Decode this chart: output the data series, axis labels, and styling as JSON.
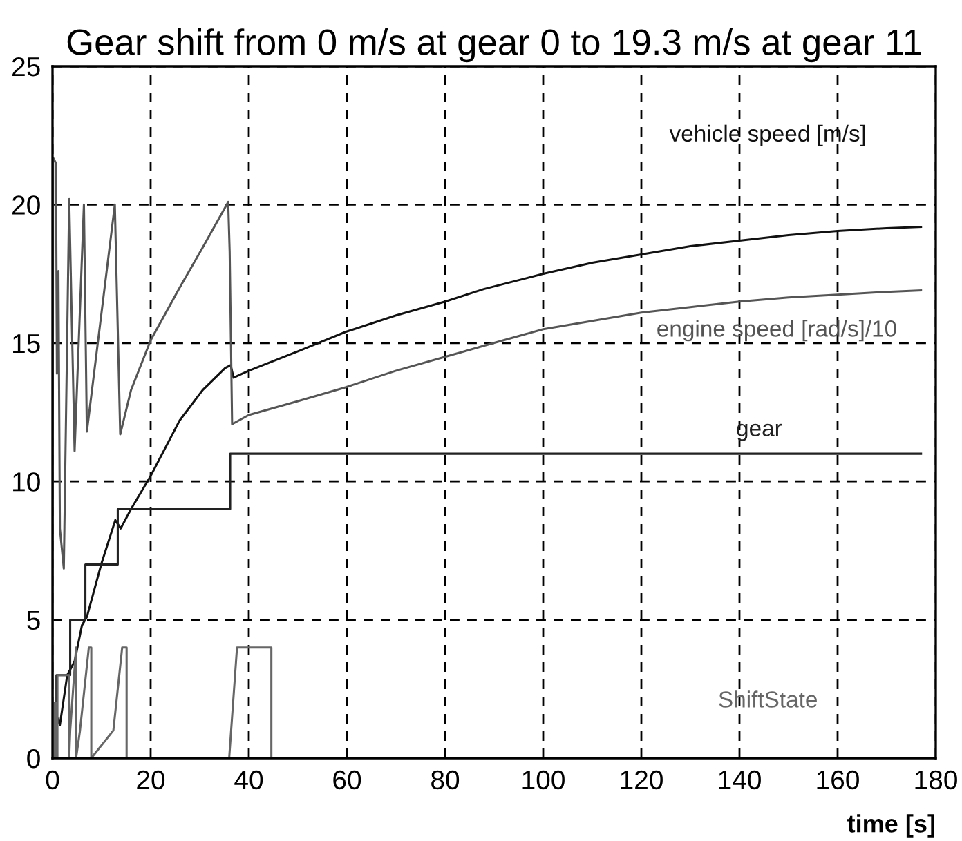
{
  "chart_data": {
    "type": "line",
    "title": "Gear shift from 0 m/s at gear 0 to 19.3 m/s at gear 11",
    "xlabel": "time [s]",
    "xlim": [
      0,
      180
    ],
    "xticks": [
      0,
      20,
      40,
      60,
      80,
      100,
      120,
      140,
      160,
      180
    ],
    "ylim": [
      0,
      25
    ],
    "yticks": [
      0,
      5,
      10,
      15,
      20,
      25
    ],
    "grid": true,
    "legend": false,
    "marker": "none",
    "line_style": "solid",
    "series": [
      {
        "name": "vehicle speed [m/s]",
        "color": "#111111",
        "x": [
          0,
          0.5,
          1.5,
          3,
          4.5,
          6,
          7,
          10,
          12.8,
          13.9,
          16,
          20,
          25.9,
          30.6,
          35.2,
          36.3,
          36.9,
          40,
          50,
          59.7,
          70,
          80,
          87.9,
          100,
          110,
          120,
          130,
          140,
          150,
          160,
          170,
          177
        ],
        "values": [
          0,
          1.7,
          1.2,
          3,
          3.5,
          4.8,
          5.1,
          7.05,
          8.6,
          8.3,
          9,
          10.2,
          12.2,
          13.3,
          14.1,
          14.2,
          13.75,
          14,
          14.7,
          15.4,
          16,
          16.5,
          16.95,
          17.5,
          17.9,
          18.2,
          18.5,
          18.7,
          18.9,
          19.05,
          19.15,
          19.2
        ]
      },
      {
        "name": "engine speed [rad/s]/10",
        "color": "#555555",
        "x": [
          0,
          0.1,
          0.7,
          0.9,
          1.2,
          1.5,
          2.3,
          3.4,
          4.5,
          6.4,
          7,
          12.7,
          13.8,
          16,
          20,
          25.9,
          30.6,
          35.8,
          36.1,
          36.6,
          40,
          50,
          59.7,
          70,
          80,
          87.9,
          100,
          110,
          120,
          130,
          140,
          150,
          160,
          170,
          177
        ],
        "values": [
          0,
          21.7,
          21.5,
          13.9,
          17.6,
          8.3,
          6.85,
          20.2,
          11.1,
          20,
          11.8,
          20,
          11.7,
          13.3,
          15.1,
          17,
          18.45,
          20.1,
          18.3,
          12.07,
          12.4,
          12.9,
          13.4,
          14,
          14.5,
          14.9,
          15.5,
          15.8,
          16.1,
          16.3,
          16.5,
          16.65,
          16.75,
          16.85,
          16.9
        ]
      },
      {
        "name": "gear",
        "color": "#222222",
        "x": [
          0,
          0.3,
          0.3,
          0.8,
          0.8,
          3.6,
          3.6,
          6.7,
          6.7,
          13.3,
          13.3,
          36.2,
          36.2,
          177
        ],
        "values": [
          0,
          0,
          2,
          2,
          3,
          3,
          5,
          5,
          7,
          7,
          9,
          9,
          11,
          11
        ]
      },
      {
        "name": "ShiftState",
        "color": "#666666",
        "x": [
          0,
          0.3,
          0.3,
          0.6,
          0.6,
          1.0,
          1.0,
          3.4,
          3.4,
          3.6,
          4.0,
          4.4,
          4.8,
          4.8,
          5.6,
          6.2,
          6.8,
          7.4,
          7.9,
          7.9,
          12.4,
          13.0,
          13.6,
          14.2,
          15.0,
          15.1,
          15.1,
          36.0,
          36.4,
          36.8,
          37.2,
          37.6,
          44.6,
          44.6,
          177
        ],
        "values": [
          0,
          0,
          2,
          2,
          0,
          0,
          3,
          3,
          0,
          1,
          2,
          3,
          4,
          0,
          1,
          2,
          3,
          4,
          4,
          0,
          1,
          2,
          3,
          4,
          4,
          4,
          0,
          0,
          1,
          2,
          3,
          4,
          4,
          0,
          0
        ]
      }
    ]
  }
}
